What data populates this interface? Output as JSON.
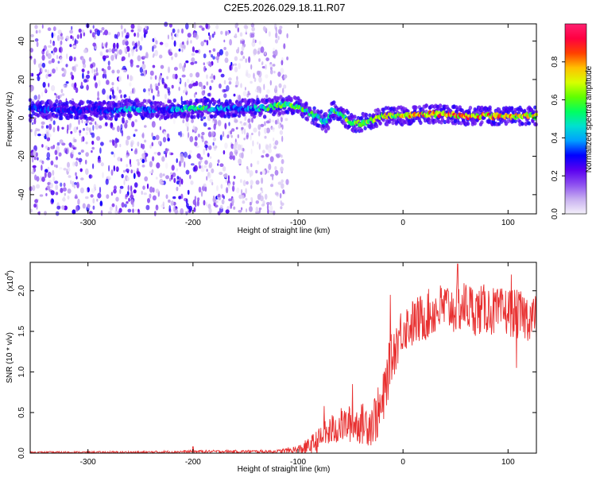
{
  "title": "C2E5.2026.029.18.11.R07",
  "chart_data": [
    {
      "type": "heatmap",
      "xlabel": "Height of straight line (km)",
      "ylabel": "Frequency (Hz)",
      "xlim": [
        -355,
        127
      ],
      "ylim": [
        -50,
        49
      ],
      "xticks": [
        -300,
        -200,
        -100,
        0,
        100
      ],
      "yticks": [
        -40,
        -20,
        0,
        20,
        40
      ],
      "colorbar": {
        "label": "Normalized spectral amplitude",
        "range": [
          0,
          1
        ],
        "ticks": [
          "0.0",
          "0.2",
          "0.4",
          "0.6",
          "0.8"
        ],
        "tick_values": [
          0.0,
          0.2,
          0.4,
          0.6,
          0.8
        ],
        "colors": [
          "#f4f0fa",
          "#c8b0f0",
          "#8e50f0",
          "#5a00f0",
          "#0000ff",
          "#00a0ff",
          "#00e0d0",
          "#00ff60",
          "#60ff00",
          "#d8ff00",
          "#ffc000",
          "#ff4000",
          "#ff0040",
          "#ff2070"
        ]
      },
      "signal_track": [
        {
          "x": -350,
          "y": 5,
          "a": 0.35
        },
        {
          "x": -320,
          "y": 4,
          "a": 0.3
        },
        {
          "x": -290,
          "y": 4,
          "a": 0.3
        },
        {
          "x": -270,
          "y": 4,
          "a": 0.38
        },
        {
          "x": -260,
          "y": 5,
          "a": 0.45
        },
        {
          "x": -230,
          "y": 4,
          "a": 0.3
        },
        {
          "x": -210,
          "y": 5,
          "a": 0.45
        },
        {
          "x": -190,
          "y": 5,
          "a": 0.55
        },
        {
          "x": -170,
          "y": 5,
          "a": 0.4
        },
        {
          "x": -150,
          "y": 5,
          "a": 0.35
        },
        {
          "x": -130,
          "y": 5,
          "a": 0.55
        },
        {
          "x": -115,
          "y": 7,
          "a": 0.6
        },
        {
          "x": -100,
          "y": 6,
          "a": 0.6
        },
        {
          "x": -90,
          "y": 3,
          "a": 0.55
        },
        {
          "x": -80,
          "y": 0,
          "a": 0.5
        },
        {
          "x": -72,
          "y": -3,
          "a": 0.45
        },
        {
          "x": -68,
          "y": 5,
          "a": 0.55
        },
        {
          "x": -60,
          "y": 2,
          "a": 0.6
        },
        {
          "x": -50,
          "y": -2,
          "a": 0.65
        },
        {
          "x": -42,
          "y": -3,
          "a": 0.6
        },
        {
          "x": -35,
          "y": -2,
          "a": 0.6
        },
        {
          "x": -25,
          "y": 0,
          "a": 0.65
        },
        {
          "x": -15,
          "y": 1,
          "a": 0.7
        },
        {
          "x": 0,
          "y": 1,
          "a": 0.72
        },
        {
          "x": 20,
          "y": 2,
          "a": 0.8
        },
        {
          "x": 40,
          "y": 2,
          "a": 0.82
        },
        {
          "x": 60,
          "y": 1,
          "a": 0.8
        },
        {
          "x": 80,
          "y": 1,
          "a": 0.82
        },
        {
          "x": 100,
          "y": 1,
          "a": 0.8
        },
        {
          "x": 127,
          "y": 1,
          "a": 0.78
        }
      ],
      "noise_region": {
        "x_from": -355,
        "x_to": -110,
        "amplitude_max": 0.3
      }
    },
    {
      "type": "line",
      "xlabel": "Height of straight line (km)",
      "ylabel": "SNR (10 * v/v)",
      "y_multiplier": "(x10",
      "y_multiplier_exp": "4",
      "y_multiplier_close": ")",
      "xlim": [
        -355,
        127
      ],
      "ylim": [
        0,
        2.35
      ],
      "xticks": [
        -300,
        -200,
        -100,
        0,
        100
      ],
      "yticks": [
        "0.0",
        "0.5",
        "1.0",
        "1.5",
        "2.0"
      ],
      "ytick_values": [
        0.0,
        0.5,
        1.0,
        1.5,
        2.0
      ],
      "series": [
        {
          "name": "SNR",
          "color": "#e83030",
          "trend_x": [
            -355,
            -300,
            -250,
            -200,
            -150,
            -120,
            -100,
            -90,
            -80,
            -70,
            -60,
            -50,
            -40,
            -30,
            -20,
            -15,
            -10,
            -5,
            0,
            10,
            20,
            30,
            40,
            50,
            60,
            70,
            80,
            90,
            100,
            110,
            120,
            127
          ],
          "trend_y": [
            0.01,
            0.01,
            0.01,
            0.02,
            0.02,
            0.02,
            0.04,
            0.08,
            0.16,
            0.26,
            0.34,
            0.36,
            0.36,
            0.38,
            0.55,
            0.95,
            1.2,
            1.4,
            1.55,
            1.6,
            1.68,
            1.75,
            1.8,
            1.78,
            1.82,
            1.75,
            1.78,
            1.72,
            1.75,
            1.7,
            1.68,
            1.66
          ],
          "noise_amp_x": [
            -355,
            -120,
            -100,
            -70,
            -40,
            -20,
            0,
            40,
            127
          ],
          "noise_amp_y": [
            0.01,
            0.02,
            0.06,
            0.2,
            0.25,
            0.35,
            0.3,
            0.32,
            0.3
          ],
          "peaks": [
            {
              "x": -200,
              "y": 0.08
            },
            {
              "x": -75,
              "y": 0.58
            },
            {
              "x": -48,
              "y": 0.85
            },
            {
              "x": -12,
              "y": 1.95
            },
            {
              "x": 52,
              "y": 2.33
            },
            {
              "x": 103,
              "y": 2.2
            },
            {
              "x": 108,
              "y": 1.05
            }
          ]
        }
      ]
    }
  ]
}
